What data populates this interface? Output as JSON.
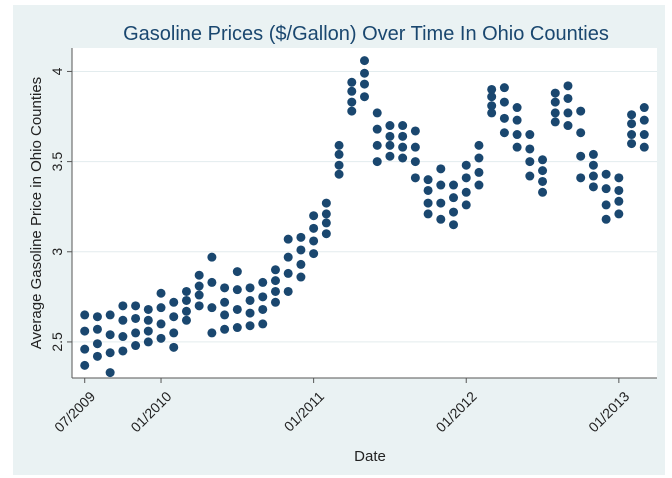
{
  "chart_data": {
    "type": "scatter",
    "title": "Gasoline Prices ($/Gallon) Over Time In Ohio Counties",
    "x_label": "Date",
    "y_label": "Average Gasoline Price in Ohio Counties",
    "color": "#1a476f",
    "grid": true,
    "xlim": [
      "06/2009",
      "04/2013"
    ],
    "xticks": [
      "07/2009",
      "01/2010",
      "01/2011",
      "01/2012",
      "01/2013"
    ],
    "ylim": [
      2.3,
      4.13
    ],
    "yticks": [
      2.5,
      3,
      3.5,
      4
    ],
    "x": [
      "07/2009",
      "08/2009",
      "09/2009",
      "10/2009",
      "11/2009",
      "12/2009",
      "01/2010",
      "02/2010",
      "03/2010",
      "04/2010",
      "05/2010",
      "06/2010",
      "07/2010",
      "08/2010",
      "09/2010",
      "10/2010",
      "11/2010",
      "12/2010",
      "01/2011",
      "02/2011",
      "03/2011",
      "04/2011",
      "05/2011",
      "06/2011",
      "07/2011",
      "08/2011",
      "09/2011",
      "10/2011",
      "11/2011",
      "12/2011",
      "01/2012",
      "02/2012",
      "03/2012",
      "04/2012",
      "05/2012",
      "06/2012",
      "07/2012",
      "08/2012",
      "09/2012",
      "10/2012",
      "11/2012",
      "12/2012",
      "01/2013",
      "02/2013",
      "03/2013"
    ],
    "values": [
      [
        2.37,
        2.46,
        2.56,
        2.65
      ],
      [
        2.42,
        2.49,
        2.57,
        2.64
      ],
      [
        2.33,
        2.44,
        2.54,
        2.65
      ],
      [
        2.45,
        2.53,
        2.62,
        2.7
      ],
      [
        2.48,
        2.55,
        2.63,
        2.7
      ],
      [
        2.5,
        2.56,
        2.62,
        2.68
      ],
      [
        2.52,
        2.6,
        2.69,
        2.77
      ],
      [
        2.47,
        2.55,
        2.64,
        2.72
      ],
      [
        2.62,
        2.67,
        2.73,
        2.78
      ],
      [
        2.7,
        2.76,
        2.81,
        2.87
      ],
      [
        2.55,
        2.69,
        2.83,
        2.97
      ],
      [
        2.57,
        2.65,
        2.72,
        2.8
      ],
      [
        2.58,
        2.68,
        2.79,
        2.89
      ],
      [
        2.59,
        2.66,
        2.73,
        2.8
      ],
      [
        2.6,
        2.68,
        2.75,
        2.83
      ],
      [
        2.72,
        2.78,
        2.84,
        2.9
      ],
      [
        2.78,
        2.88,
        2.97,
        3.07
      ],
      [
        2.86,
        2.93,
        3.01,
        3.08
      ],
      [
        2.99,
        3.06,
        3.13,
        3.2
      ],
      [
        3.1,
        3.16,
        3.21,
        3.27
      ],
      [
        3.43,
        3.48,
        3.54,
        3.59
      ],
      [
        3.78,
        3.83,
        3.89,
        3.94
      ],
      [
        3.86,
        3.93,
        3.99,
        4.06
      ],
      [
        3.5,
        3.59,
        3.68,
        3.77
      ],
      [
        3.53,
        3.59,
        3.64,
        3.7
      ],
      [
        3.52,
        3.58,
        3.64,
        3.7
      ],
      [
        3.41,
        3.5,
        3.58,
        3.67
      ],
      [
        3.21,
        3.27,
        3.34,
        3.4
      ],
      [
        3.18,
        3.27,
        3.37,
        3.46
      ],
      [
        3.15,
        3.22,
        3.3,
        3.37
      ],
      [
        3.26,
        3.33,
        3.41,
        3.48
      ],
      [
        3.37,
        3.44,
        3.52,
        3.59
      ],
      [
        3.77,
        3.81,
        3.86,
        3.9
      ],
      [
        3.66,
        3.74,
        3.83,
        3.91
      ],
      [
        3.58,
        3.65,
        3.73,
        3.8
      ],
      [
        3.42,
        3.5,
        3.57,
        3.65
      ],
      [
        3.33,
        3.39,
        3.45,
        3.51
      ],
      [
        3.72,
        3.77,
        3.83,
        3.88
      ],
      [
        3.7,
        3.77,
        3.85,
        3.92
      ],
      [
        3.41,
        3.53,
        3.66,
        3.78
      ],
      [
        3.36,
        3.42,
        3.48,
        3.54
      ],
      [
        3.18,
        3.26,
        3.35,
        3.43
      ],
      [
        3.21,
        3.28,
        3.34,
        3.41
      ],
      [
        3.6,
        3.65,
        3.71,
        3.76
      ],
      [
        3.58,
        3.65,
        3.73,
        3.8
      ]
    ]
  }
}
